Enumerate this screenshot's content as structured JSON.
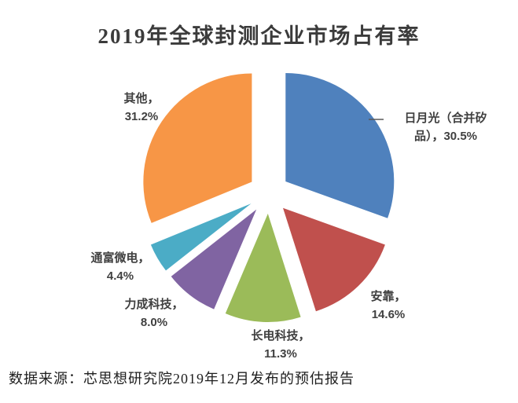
{
  "title": "2019年全球封测企业市场占有率",
  "source_note": "数据来源：芯思想研究院2019年12月发布的预估报告",
  "chart_data": {
    "type": "pie",
    "title": "2019年全球封测企业市场占有率",
    "unit": "%",
    "start_angle_deg": 0,
    "direction": "clockwise",
    "exploded": true,
    "legend": "none",
    "label_format": "name, percent",
    "slices": [
      {
        "name": "日月光（合并矽品）",
        "value": 30.5,
        "color": "#4F81BD",
        "label_lines": [
          "日月光（合并矽",
          "品），30.5%"
        ]
      },
      {
        "name": "安靠",
        "value": 14.6,
        "color": "#C0504D",
        "label_lines": [
          "安靠，",
          "14.6%"
        ]
      },
      {
        "name": "长电科技",
        "value": 11.3,
        "color": "#9BBB59",
        "label_lines": [
          "长电科技，",
          "11.3%"
        ]
      },
      {
        "name": "力成科技",
        "value": 8.0,
        "color": "#8064A2",
        "label_lines": [
          "力成科技，",
          "8.0%"
        ]
      },
      {
        "name": "通富微电",
        "value": 4.4,
        "color": "#4BACC6",
        "label_lines": [
          "通富微电，",
          "4.4%"
        ]
      },
      {
        "name": "其他",
        "value": 31.2,
        "color": "#F79646",
        "label_lines": [
          "其他，",
          "31.2%"
        ]
      }
    ],
    "text_color": "#404040",
    "leader_line_color": "#595959"
  }
}
